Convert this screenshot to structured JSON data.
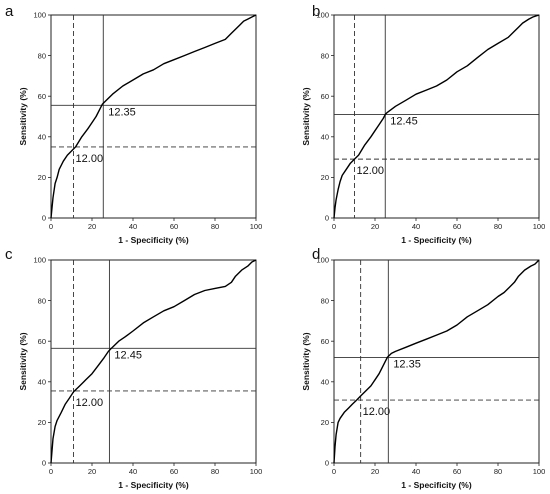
{
  "chart_data": [
    {
      "type": "line",
      "panel_label": "a",
      "xlabel": "1 - Specificity (%)",
      "ylabel": "Sensitivity (%)",
      "xlim": [
        0,
        100
      ],
      "ylim": [
        0,
        100
      ],
      "xticks": [
        0,
        20,
        40,
        60,
        80,
        100
      ],
      "yticks": [
        0,
        20,
        40,
        60,
        80,
        100
      ],
      "x": [
        0,
        0.5,
        1,
        2,
        3,
        4,
        5,
        6,
        8,
        10,
        12,
        15,
        18,
        20,
        22,
        24,
        25,
        26,
        28,
        30,
        35,
        40,
        45,
        50,
        55,
        60,
        65,
        70,
        75,
        80,
        85,
        88,
        90,
        92,
        94,
        96,
        98,
        100
      ],
      "y": [
        0,
        5,
        10,
        17,
        20,
        24,
        26,
        28,
        31,
        33,
        35,
        40,
        44,
        47,
        50,
        54,
        56,
        57,
        59,
        61,
        65,
        68,
        71,
        73,
        76,
        78,
        80,
        82,
        84,
        86,
        88,
        91,
        93,
        95,
        97,
        98,
        99,
        100
      ],
      "cutoffs": [
        {
          "label": "12.00",
          "x": 11,
          "y": 35,
          "style": "dashed"
        },
        {
          "label": "12.35",
          "x": 25.5,
          "y": 55.5,
          "style": "solid"
        }
      ]
    },
    {
      "type": "line",
      "panel_label": "b",
      "xlabel": "1 - Specificity (%)",
      "ylabel": "Sensitivity (%)",
      "xlim": [
        0,
        100
      ],
      "ylim": [
        0,
        100
      ],
      "xticks": [
        0,
        20,
        40,
        60,
        80,
        100
      ],
      "yticks": [
        0,
        20,
        40,
        60,
        80,
        100
      ],
      "x": [
        0,
        0.5,
        1,
        2,
        3,
        4,
        6,
        8,
        10,
        12,
        15,
        18,
        20,
        22,
        24,
        25,
        26,
        30,
        35,
        40,
        45,
        50,
        55,
        60,
        65,
        70,
        75,
        80,
        85,
        88,
        90,
        92,
        95,
        97,
        100
      ],
      "y": [
        0,
        5,
        9,
        14,
        18,
        21,
        24,
        27,
        29,
        31,
        36,
        40,
        43,
        46,
        49,
        51,
        52,
        55,
        58,
        61,
        63,
        65,
        68,
        72,
        75,
        79,
        83,
        86,
        89,
        92,
        94,
        96,
        98,
        99,
        100
      ],
      "cutoffs": [
        {
          "label": "12.00",
          "x": 10,
          "y": 29,
          "style": "dashed"
        },
        {
          "label": "12.45",
          "x": 25,
          "y": 51,
          "style": "solid"
        }
      ]
    },
    {
      "type": "line",
      "panel_label": "c",
      "xlabel": "1 - Specificity (%)",
      "ylabel": "Sensitivity (%)",
      "xlim": [
        0,
        100
      ],
      "ylim": [
        0,
        100
      ],
      "xticks": [
        0,
        20,
        40,
        60,
        80,
        100
      ],
      "yticks": [
        0,
        20,
        40,
        60,
        80,
        100
      ],
      "x": [
        0,
        0.5,
        1,
        2,
        3,
        5,
        7,
        9,
        11,
        14,
        17,
        20,
        23,
        26,
        28,
        29,
        30,
        33,
        36,
        40,
        45,
        50,
        55,
        60,
        65,
        70,
        75,
        80,
        85,
        88,
        90,
        93,
        96,
        98,
        100
      ],
      "y": [
        0,
        6,
        12,
        18,
        21,
        25,
        29,
        32,
        35,
        38,
        41,
        44,
        48,
        52,
        55,
        56,
        57,
        60,
        62,
        65,
        69,
        72,
        75,
        77,
        80,
        83,
        85,
        86,
        87,
        89,
        92,
        95,
        97,
        99,
        100
      ],
      "cutoffs": [
        {
          "label": "12.00",
          "x": 11,
          "y": 35.5,
          "style": "dashed"
        },
        {
          "label": "12.45",
          "x": 28.5,
          "y": 56.5,
          "style": "solid"
        }
      ]
    },
    {
      "type": "line",
      "panel_label": "d",
      "xlabel": "1 - Specificity (%)",
      "ylabel": "Sensitivity (%)",
      "xlim": [
        0,
        100
      ],
      "ylim": [
        0,
        100
      ],
      "xticks": [
        0,
        20,
        40,
        60,
        80,
        100
      ],
      "yticks": [
        0,
        20,
        40,
        60,
        80,
        100
      ],
      "x": [
        0,
        0.5,
        1,
        2,
        3,
        5,
        7,
        9,
        11,
        13,
        15,
        18,
        20,
        22,
        24,
        26,
        28,
        30,
        35,
        40,
        45,
        50,
        55,
        60,
        65,
        70,
        75,
        80,
        83,
        85,
        88,
        90,
        93,
        96,
        98,
        100
      ],
      "y": [
        0,
        8,
        14,
        20,
        22,
        25,
        27,
        29,
        31,
        33,
        35,
        38,
        41,
        44,
        48,
        52,
        54,
        55,
        57,
        59,
        61,
        63,
        65,
        68,
        72,
        75,
        78,
        82,
        84,
        86,
        89,
        92,
        95,
        97,
        98,
        100
      ],
      "cutoffs": [
        {
          "label": "12.00",
          "x": 13,
          "y": 31,
          "style": "dashed"
        },
        {
          "label": "12.35",
          "x": 26.5,
          "y": 52,
          "style": "solid"
        }
      ]
    }
  ]
}
